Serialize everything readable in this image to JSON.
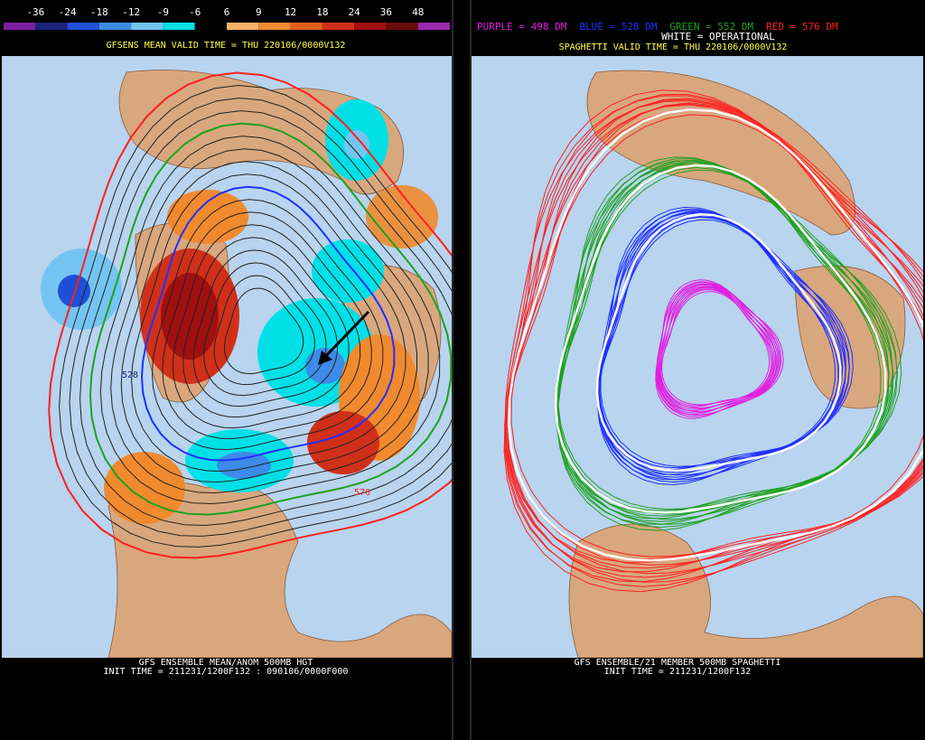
{
  "left_panel": {
    "colorbar": {
      "labels": [
        -36,
        -24,
        -18,
        -12,
        -9,
        -6,
        6,
        9,
        12,
        18,
        24,
        36,
        48
      ],
      "colors": [
        "#7b1fa2",
        "#1a237e",
        "#1e4fd8",
        "#3d8be8",
        "#74c4f2",
        "#00e0e6",
        "#000000",
        "#f8b26a",
        "#f08a2e",
        "#e0601a",
        "#d0301a",
        "#a01010",
        "#6a0a0a",
        "#9c27b0"
      ]
    },
    "title": "GFSENS MEAN VALID TIME = THU 220106/0000V132",
    "map_labels": [
      "528",
      "576"
    ],
    "footer": [
      "GFS ENSEMBLE MEAN/ANOM 500MB HGT",
      "INIT TIME = 211231/1200F132 : 090106/0000F000"
    ]
  },
  "right_panel": {
    "legend": [
      {
        "text": "PURPLE = 498 DM",
        "color": "#e020e0"
      },
      {
        "text": "BLUE = 528 DM",
        "color": "#2030ff"
      },
      {
        "text": "GREEN = 552 DM",
        "color": "#20a020"
      },
      {
        "text": "RED = 576 DM",
        "color": "#ff2020"
      }
    ],
    "operational": "WHITE = OPERATIONAL",
    "title": "SPAGHETTI VALID TIME = THU 220106/0000V132",
    "footer": [
      "GFS ENSEMBLE/21 MEMBER 500MB SPAGHETTI",
      "INIT TIME = 211231/1200F132"
    ]
  }
}
